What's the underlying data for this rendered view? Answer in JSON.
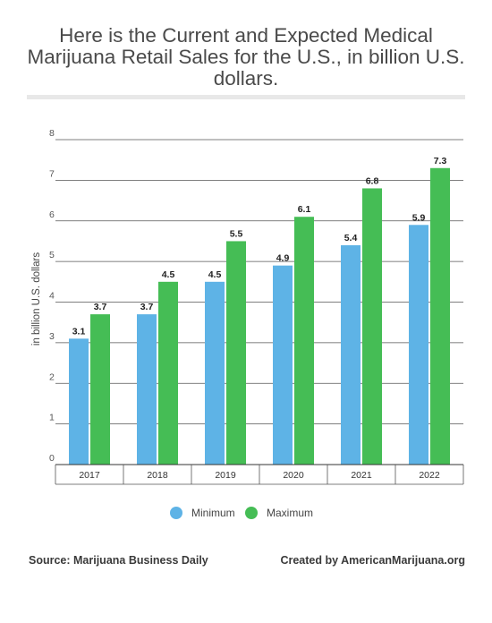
{
  "chart_data": {
    "type": "bar",
    "title": "Here is the Current and Expected Medical\nMarijuana Retail Sales for the U.S., in billion U.S.\ndollars.",
    "ylabel": "in billion U.S. dollars",
    "xlabel": "",
    "categories": [
      "2017",
      "2018",
      "2019",
      "2020",
      "2021",
      "2022"
    ],
    "series": [
      {
        "name": "Minimum",
        "color": "#5eb3e6",
        "values": [
          3.1,
          3.7,
          4.5,
          4.9,
          5.4,
          5.9
        ]
      },
      {
        "name": "Maximum",
        "color": "#45bd55",
        "values": [
          3.7,
          4.5,
          5.5,
          6.1,
          6.8,
          7.3
        ]
      }
    ],
    "ylim": [
      0,
      8
    ],
    "yticks": [
      "0",
      "1",
      "2",
      "3",
      "4",
      "5",
      "6",
      "7",
      "8"
    ],
    "grid": true,
    "legend_position": "bottom"
  },
  "footer": {
    "source": "Source: Marijuana Business Daily",
    "credit": "Created by AmericanMarijuana.org"
  }
}
